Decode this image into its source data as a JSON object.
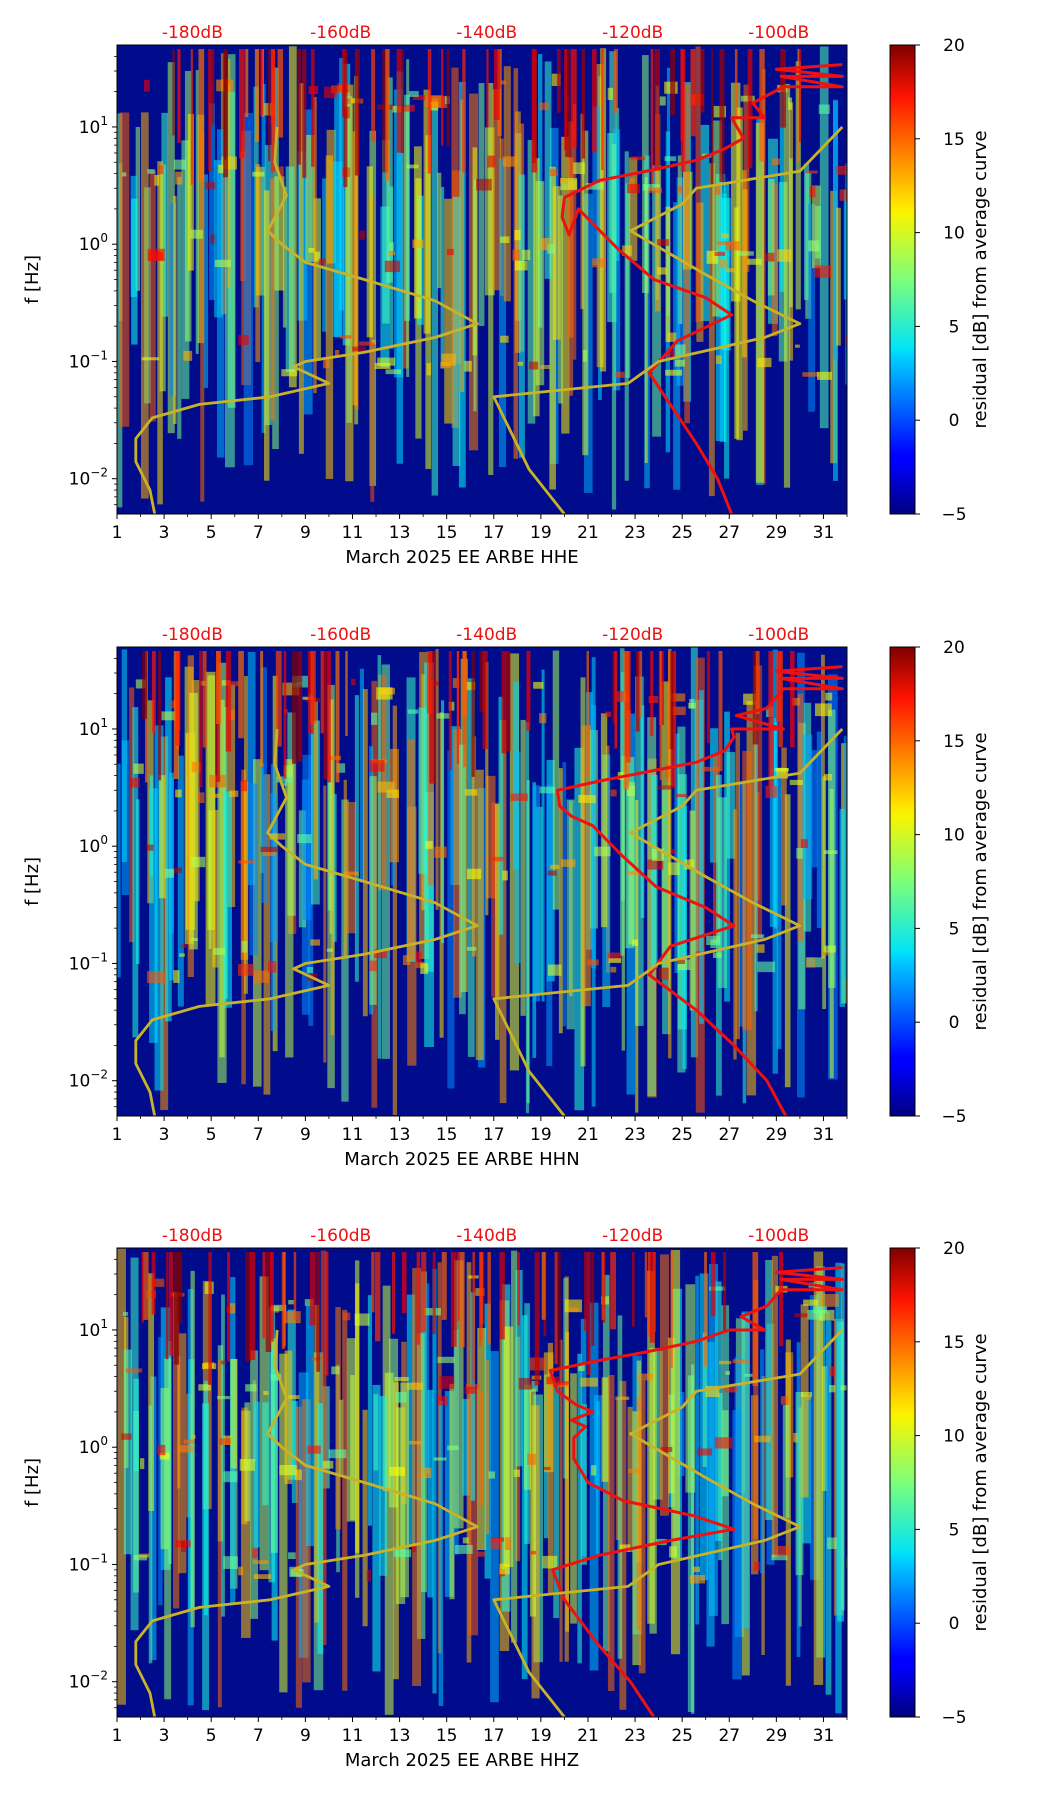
{
  "colors": {
    "red_curve": "#ee1111",
    "olive_curve": "#c8b228",
    "db_label": "#ee1111",
    "low_background": "#000c8c"
  },
  "chart_data": [
    {
      "type": "heatmap",
      "title": "",
      "xlabel": "March 2025 EE ARBE  HHE",
      "ylabel": "f [Hz]",
      "xlim": [
        1,
        32
      ],
      "ylim": [
        0.005,
        50
      ],
      "yscale": "log",
      "x_ticks": [
        1,
        3,
        5,
        7,
        9,
        11,
        13,
        15,
        17,
        19,
        21,
        23,
        25,
        27,
        29,
        31
      ],
      "y_ticks": [
        {
          "value": 0.01,
          "base": "10",
          "exp": "−2"
        },
        {
          "value": 0.1,
          "base": "10",
          "exp": "−1"
        },
        {
          "value": 1,
          "base": "10",
          "exp": "0"
        },
        {
          "value": 10,
          "base": "10",
          "exp": "1"
        }
      ],
      "top_labels": [
        {
          "x": 4.2,
          "text": "-180dB"
        },
        {
          "x": 10.5,
          "text": "-160dB"
        },
        {
          "x": 16.7,
          "text": "-140dB"
        },
        {
          "x": 22.9,
          "text": "-120dB"
        },
        {
          "x": 29.1,
          "text": "-100dB"
        }
      ],
      "colorbar": {
        "label": "residual [dB] from average curve",
        "min": -5,
        "max": 20,
        "ticks": [
          -5,
          0,
          5,
          10,
          15,
          20
        ],
        "colormap": "jet"
      },
      "series": [
        {
          "color": "red",
          "points": [
            [
              27.1,
              0.005
            ],
            [
              26.5,
              0.01
            ],
            [
              25.6,
              0.02
            ],
            [
              24.6,
              0.04
            ],
            [
              23.6,
              0.08
            ],
            [
              24.8,
              0.15
            ],
            [
              27.1,
              0.25
            ],
            [
              26.0,
              0.35
            ],
            [
              23.8,
              0.5
            ],
            [
              22.3,
              0.9
            ],
            [
              21.2,
              1.5
            ],
            [
              20.6,
              2.0
            ],
            [
              20.2,
              1.2
            ],
            [
              19.9,
              1.7
            ],
            [
              20.0,
              2.5
            ],
            [
              21.5,
              3.5
            ],
            [
              23.5,
              4.2
            ],
            [
              25.6,
              5.2
            ],
            [
              26.8,
              6.5
            ],
            [
              27.6,
              8.0
            ],
            [
              27.1,
              12.0
            ],
            [
              28.5,
              12.0
            ],
            [
              28.0,
              16.0
            ],
            [
              29.3,
              22.0
            ],
            [
              31.8,
              22.0
            ],
            [
              29.2,
              27.0
            ],
            [
              31.8,
              27.0
            ],
            [
              29.0,
              31.0
            ],
            [
              31.8,
              34.0
            ]
          ]
        },
        {
          "color": "olive",
          "points": [
            [
              2.6,
              0.005
            ],
            [
              2.4,
              0.008
            ],
            [
              1.8,
              0.014
            ],
            [
              1.8,
              0.022
            ],
            [
              2.5,
              0.033
            ],
            [
              4.5,
              0.043
            ],
            [
              7.5,
              0.05
            ],
            [
              10.0,
              0.065
            ],
            [
              8.5,
              0.09
            ],
            [
              9.0,
              0.1
            ],
            [
              11.5,
              0.12
            ],
            [
              14.5,
              0.16
            ],
            [
              16.3,
              0.21
            ],
            [
              14.5,
              0.33
            ],
            [
              11.5,
              0.5
            ],
            [
              9.0,
              0.7
            ],
            [
              8.0,
              1.0
            ],
            [
              7.4,
              1.3
            ],
            [
              8.2,
              2.6
            ],
            [
              7.7,
              5.0
            ],
            [
              7.8,
              10.0
            ]
          ]
        },
        {
          "color": "olive",
          "points": [
            [
              20.0,
              0.005
            ],
            [
              18.5,
              0.012
            ],
            [
              17.0,
              0.05
            ],
            [
              22.7,
              0.065
            ],
            [
              24.0,
              0.1
            ],
            [
              28.5,
              0.16
            ],
            [
              30.0,
              0.21
            ],
            [
              28.0,
              0.33
            ],
            [
              26.0,
              0.55
            ],
            [
              22.8,
              1.3
            ],
            [
              25.0,
              2.2
            ],
            [
              25.6,
              3.0
            ],
            [
              30.0,
              4.2
            ],
            [
              31.8,
              10.0
            ]
          ]
        }
      ]
    },
    {
      "type": "heatmap",
      "title": "",
      "xlabel": "March 2025 EE ARBE  HHN",
      "ylabel": "f [Hz]",
      "xlim": [
        1,
        32
      ],
      "ylim": [
        0.005,
        50
      ],
      "yscale": "log",
      "x_ticks": [
        1,
        3,
        5,
        7,
        9,
        11,
        13,
        15,
        17,
        19,
        21,
        23,
        25,
        27,
        29,
        31
      ],
      "y_ticks": [
        {
          "value": 0.01,
          "base": "10",
          "exp": "−2"
        },
        {
          "value": 0.1,
          "base": "10",
          "exp": "−1"
        },
        {
          "value": 1,
          "base": "10",
          "exp": "0"
        },
        {
          "value": 10,
          "base": "10",
          "exp": "1"
        }
      ],
      "top_labels": [
        {
          "x": 4.2,
          "text": "-180dB"
        },
        {
          "x": 10.5,
          "text": "-160dB"
        },
        {
          "x": 16.7,
          "text": "-140dB"
        },
        {
          "x": 22.9,
          "text": "-120dB"
        },
        {
          "x": 29.1,
          "text": "-100dB"
        }
      ],
      "colorbar": {
        "label": "residual [dB] from average curve",
        "min": -5,
        "max": 20,
        "ticks": [
          -5,
          0,
          5,
          10,
          15,
          20
        ],
        "colormap": "jet"
      },
      "series": [
        {
          "color": "red",
          "points": [
            [
              29.4,
              0.005
            ],
            [
              28.6,
              0.01
            ],
            [
              27.2,
              0.02
            ],
            [
              25.6,
              0.04
            ],
            [
              23.6,
              0.08
            ],
            [
              24.5,
              0.14
            ],
            [
              27.2,
              0.21
            ],
            [
              26.0,
              0.3
            ],
            [
              23.9,
              0.45
            ],
            [
              22.4,
              0.85
            ],
            [
              21.2,
              1.5
            ],
            [
              20.3,
              1.8
            ],
            [
              19.8,
              2.2
            ],
            [
              19.7,
              3.0
            ],
            [
              21.5,
              3.6
            ],
            [
              23.5,
              4.3
            ],
            [
              25.6,
              5.2
            ],
            [
              26.8,
              6.5
            ],
            [
              27.2,
              8.5
            ],
            [
              27.1,
              10.0
            ],
            [
              29.3,
              10.0
            ],
            [
              27.3,
              13.0
            ],
            [
              28.6,
              15.0
            ],
            [
              29.3,
              22.0
            ],
            [
              31.8,
              22.0
            ],
            [
              29.2,
              27.0
            ],
            [
              31.8,
              27.0
            ],
            [
              29.0,
              31.0
            ],
            [
              31.8,
              34.0
            ]
          ]
        },
        {
          "color": "olive",
          "points": [
            [
              2.6,
              0.005
            ],
            [
              2.4,
              0.008
            ],
            [
              1.8,
              0.014
            ],
            [
              1.8,
              0.022
            ],
            [
              2.5,
              0.033
            ],
            [
              4.5,
              0.043
            ],
            [
              7.5,
              0.05
            ],
            [
              10.0,
              0.065
            ],
            [
              8.5,
              0.09
            ],
            [
              9.0,
              0.1
            ],
            [
              11.5,
              0.12
            ],
            [
              14.5,
              0.16
            ],
            [
              16.3,
              0.21
            ],
            [
              14.5,
              0.33
            ],
            [
              11.5,
              0.5
            ],
            [
              9.0,
              0.7
            ],
            [
              8.0,
              1.0
            ],
            [
              7.4,
              1.3
            ],
            [
              8.2,
              2.6
            ],
            [
              7.7,
              5.0
            ],
            [
              7.8,
              10.0
            ]
          ]
        },
        {
          "color": "olive",
          "points": [
            [
              20.0,
              0.005
            ],
            [
              18.5,
              0.012
            ],
            [
              17.0,
              0.05
            ],
            [
              22.7,
              0.065
            ],
            [
              24.0,
              0.1
            ],
            [
              28.5,
              0.16
            ],
            [
              30.0,
              0.21
            ],
            [
              28.0,
              0.33
            ],
            [
              26.0,
              0.55
            ],
            [
              22.8,
              1.3
            ],
            [
              25.0,
              2.2
            ],
            [
              25.6,
              3.0
            ],
            [
              30.0,
              4.2
            ],
            [
              31.8,
              10.0
            ]
          ]
        }
      ]
    },
    {
      "type": "heatmap",
      "title": "",
      "xlabel": "March 2025 EE ARBE  HHZ",
      "ylabel": "f [Hz]",
      "xlim": [
        1,
        32
      ],
      "ylim": [
        0.005,
        50
      ],
      "yscale": "log",
      "x_ticks": [
        1,
        3,
        5,
        7,
        9,
        11,
        13,
        15,
        17,
        19,
        21,
        23,
        25,
        27,
        29,
        31
      ],
      "y_ticks": [
        {
          "value": 0.01,
          "base": "10",
          "exp": "−2"
        },
        {
          "value": 0.1,
          "base": "10",
          "exp": "−1"
        },
        {
          "value": 1,
          "base": "10",
          "exp": "0"
        },
        {
          "value": 10,
          "base": "10",
          "exp": "1"
        }
      ],
      "top_labels": [
        {
          "x": 4.2,
          "text": "-180dB"
        },
        {
          "x": 10.5,
          "text": "-160dB"
        },
        {
          "x": 16.7,
          "text": "-140dB"
        },
        {
          "x": 22.9,
          "text": "-120dB"
        },
        {
          "x": 29.1,
          "text": "-100dB"
        }
      ],
      "colorbar": {
        "label": "residual [dB] from average curve",
        "min": -5,
        "max": 20,
        "ticks": [
          -5,
          0,
          5,
          10,
          15,
          20
        ],
        "colormap": "jet"
      },
      "series": [
        {
          "color": "red",
          "points": [
            [
              23.8,
              0.005
            ],
            [
              22.8,
              0.01
            ],
            [
              21.5,
              0.02
            ],
            [
              20.0,
              0.05
            ],
            [
              19.5,
              0.09
            ],
            [
              21.5,
              0.12
            ],
            [
              24.5,
              0.16
            ],
            [
              27.2,
              0.2
            ],
            [
              25.5,
              0.26
            ],
            [
              22.5,
              0.35
            ],
            [
              21.0,
              0.5
            ],
            [
              20.4,
              0.8
            ],
            [
              20.4,
              1.2
            ],
            [
              20.9,
              1.5
            ],
            [
              20.3,
              1.7
            ],
            [
              21.2,
              2.0
            ],
            [
              20.5,
              2.3
            ],
            [
              19.7,
              3.0
            ],
            [
              19.4,
              4.5
            ],
            [
              21.5,
              5.5
            ],
            [
              23.5,
              6.5
            ],
            [
              25.6,
              8.0
            ],
            [
              27.0,
              10.0
            ],
            [
              28.5,
              10.0
            ],
            [
              27.5,
              13.0
            ],
            [
              28.6,
              16.0
            ],
            [
              29.2,
              22.0
            ],
            [
              31.8,
              22.0
            ],
            [
              29.2,
              27.0
            ],
            [
              31.8,
              27.0
            ],
            [
              29.0,
              31.0
            ],
            [
              31.8,
              34.0
            ]
          ]
        },
        {
          "color": "olive",
          "points": [
            [
              2.6,
              0.005
            ],
            [
              2.4,
              0.008
            ],
            [
              1.8,
              0.014
            ],
            [
              1.8,
              0.022
            ],
            [
              2.5,
              0.033
            ],
            [
              4.5,
              0.043
            ],
            [
              7.5,
              0.05
            ],
            [
              10.0,
              0.065
            ],
            [
              8.5,
              0.09
            ],
            [
              9.0,
              0.1
            ],
            [
              11.5,
              0.12
            ],
            [
              14.5,
              0.16
            ],
            [
              16.3,
              0.21
            ],
            [
              14.5,
              0.33
            ],
            [
              11.5,
              0.5
            ],
            [
              9.0,
              0.7
            ],
            [
              8.0,
              1.0
            ],
            [
              7.4,
              1.3
            ],
            [
              8.2,
              2.6
            ],
            [
              7.7,
              5.0
            ],
            [
              7.8,
              10.0
            ]
          ]
        },
        {
          "color": "olive",
          "points": [
            [
              20.0,
              0.005
            ],
            [
              18.5,
              0.012
            ],
            [
              17.0,
              0.05
            ],
            [
              22.7,
              0.065
            ],
            [
              24.0,
              0.1
            ],
            [
              28.5,
              0.16
            ],
            [
              30.0,
              0.21
            ],
            [
              28.0,
              0.33
            ],
            [
              26.0,
              0.55
            ],
            [
              22.8,
              1.3
            ],
            [
              25.0,
              2.2
            ],
            [
              25.6,
              3.0
            ],
            [
              30.0,
              4.2
            ],
            [
              31.8,
              10.0
            ]
          ]
        }
      ]
    }
  ]
}
